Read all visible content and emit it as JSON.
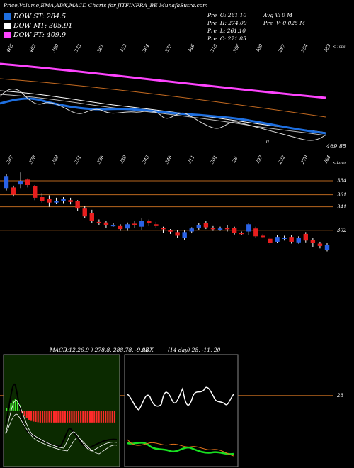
{
  "header": {
    "title": "Price,Volume,EMA,ADX,MACD Charts for JITFINFRA_BE MunafaSutra.com",
    "stats": [
      {
        "label": "Pre",
        "value": "O: 261.10"
      },
      {
        "label": "Pre",
        "value": "H: 274.00"
      },
      {
        "label": "Pre",
        "value": "L: 261.10"
      },
      {
        "label": "Pre",
        "value": "C: 271.85"
      },
      {
        "label": "Avg",
        "value": "V: 0  M"
      },
      {
        "label": "Pre",
        "value": "V: 0.025 M"
      }
    ]
  },
  "legend": [
    {
      "label": "DOW ST: 284.5",
      "color": "#1e6fe0"
    },
    {
      "label": "DOW MT: 305.91",
      "color": "#ffffff"
    },
    {
      "label": "DOW PT: 409.9",
      "color": "#ff44ff"
    }
  ],
  "ema_panel": {
    "top_prices": [
      "466",
      "402",
      "390",
      "373",
      "361",
      "352",
      "364",
      "373",
      "346",
      "310",
      "306",
      "300",
      "297",
      "284",
      "283"
    ],
    "bottom_prices": [
      "387",
      "378",
      "368",
      "351",
      "336",
      "330",
      "348",
      "346",
      "311",
      "301",
      "28",
      "297",
      "292",
      "270",
      "264"
    ],
    "top_right_label": "< Tops",
    "bottom_right_label": "< Lows",
    "last_value": "469.85",
    "mid_marker": "0"
  },
  "chart_data": {
    "type": "candlestick",
    "levels": [
      384,
      361,
      341,
      302,
      28
    ],
    "level_labels": [
      "384",
      "361",
      "341",
      "302",
      "28"
    ],
    "candles": [
      {
        "o": 372,
        "c": 392,
        "h": 395,
        "l": 368
      },
      {
        "o": 373,
        "c": 361,
        "h": 376,
        "l": 358
      },
      {
        "o": 378,
        "c": 384,
        "h": 398,
        "l": 372
      },
      {
        "o": 386,
        "c": 377,
        "h": 388,
        "l": 373
      },
      {
        "o": 375,
        "c": 356,
        "h": 377,
        "l": 352
      },
      {
        "o": 357,
        "c": 350,
        "h": 364,
        "l": 348
      },
      {
        "o": 354,
        "c": 348,
        "h": 360,
        "l": 341
      },
      {
        "o": 348,
        "c": 351,
        "h": 356,
        "l": 346
      },
      {
        "o": 351,
        "c": 354,
        "h": 357,
        "l": 347
      },
      {
        "o": 352,
        "c": 349,
        "h": 356,
        "l": 345
      },
      {
        "o": 350,
        "c": 338,
        "h": 352,
        "l": 334
      },
      {
        "o": 338,
        "c": 325,
        "h": 342,
        "l": 322
      },
      {
        "o": 330,
        "c": 318,
        "h": 336,
        "l": 314
      },
      {
        "o": 316,
        "c": 314,
        "h": 320,
        "l": 311
      },
      {
        "o": 315,
        "c": 310,
        "h": 318,
        "l": 306
      },
      {
        "o": 311,
        "c": 311,
        "h": 314,
        "l": 308
      },
      {
        "o": 309,
        "c": 304,
        "h": 312,
        "l": 301
      },
      {
        "o": 305,
        "c": 312,
        "h": 315,
        "l": 301
      },
      {
        "o": 313,
        "c": 310,
        "h": 318,
        "l": 306
      },
      {
        "o": 308,
        "c": 318,
        "h": 322,
        "l": 302
      },
      {
        "o": 317,
        "c": 314,
        "h": 320,
        "l": 309
      },
      {
        "o": 312,
        "c": 309,
        "h": 316,
        "l": 306
      },
      {
        "o": 306,
        "c": 304,
        "h": 308,
        "l": 298
      },
      {
        "o": 302,
        "c": 301,
        "h": 304,
        "l": 296
      },
      {
        "o": 299,
        "c": 293,
        "h": 302,
        "l": 290
      },
      {
        "o": 290,
        "c": 299,
        "h": 302,
        "l": 286
      },
      {
        "o": 300,
        "c": 305,
        "h": 307,
        "l": 297
      },
      {
        "o": 306,
        "c": 311,
        "h": 314,
        "l": 303
      },
      {
        "o": 314,
        "c": 307,
        "h": 318,
        "l": 304
      },
      {
        "o": 306,
        "c": 304,
        "h": 309,
        "l": 301
      },
      {
        "o": 304,
        "c": 305,
        "h": 308,
        "l": 301
      },
      {
        "o": 306,
        "c": 304,
        "h": 310,
        "l": 300
      },
      {
        "o": 306,
        "c": 298,
        "h": 308,
        "l": 295
      },
      {
        "o": 298,
        "c": 297,
        "h": 300,
        "l": 294
      },
      {
        "o": 300,
        "c": 312,
        "h": 314,
        "l": 294
      },
      {
        "o": 305,
        "c": 292,
        "h": 308,
        "l": 290
      },
      {
        "o": 293,
        "c": 292,
        "h": 296,
        "l": 289
      },
      {
        "o": 288,
        "c": 281,
        "h": 291,
        "l": 277
      },
      {
        "o": 283,
        "c": 291,
        "h": 294,
        "l": 281
      },
      {
        "o": 288,
        "c": 290,
        "h": 293,
        "l": 285
      },
      {
        "o": 291,
        "c": 283,
        "h": 294,
        "l": 280
      },
      {
        "o": 282,
        "c": 290,
        "h": 292,
        "l": 280
      },
      {
        "o": 296,
        "c": 285,
        "h": 299,
        "l": 282
      },
      {
        "o": 286,
        "c": 281,
        "h": 289,
        "l": 274
      },
      {
        "o": 280,
        "c": 276,
        "h": 283,
        "l": 272
      },
      {
        "o": 270,
        "c": 278,
        "h": 281,
        "l": 267
      }
    ]
  },
  "macd_panel": {
    "label": "MACD:",
    "values": "( 12,26,9 ) 278.8, 288.78, -9.98",
    "hist": [
      0.2,
      0.3,
      0.5,
      0.7,
      0.8,
      0.7,
      0.4,
      -0.1,
      -0.3,
      -0.45,
      -0.55,
      -0.62,
      -0.66,
      -0.68,
      -0.7,
      -0.72,
      -0.72,
      -0.72,
      -0.72,
      -0.71,
      -0.72,
      -0.72,
      -0.72,
      -0.72,
      -0.72,
      -0.72,
      -0.72,
      -0.72,
      -0.72,
      -0.72,
      -0.72,
      -0.71,
      -0.72,
      -0.72,
      -0.72,
      -0.72,
      -0.72,
      -0.72,
      -0.72,
      -0.72,
      -0.72,
      -0.72,
      -0.72,
      -0.72,
      -0.72,
      -0.72,
      -0.72,
      -0.72,
      -0.72
    ]
  },
  "adx_panel": {
    "label": "ADX",
    "values": "(14 day) 28, -11, 20"
  }
}
